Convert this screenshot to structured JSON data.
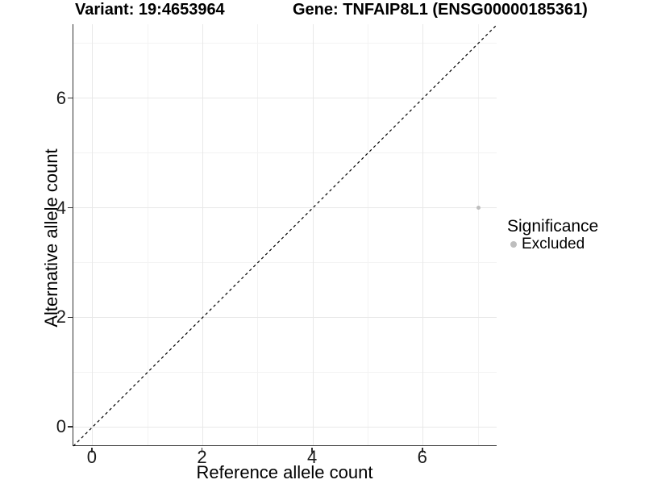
{
  "header": {
    "title_left": "Variant: 19:4653964",
    "title_right": "Gene: TNFAIP8L1 (ENSG00000185361)"
  },
  "chart_data": {
    "type": "scatter",
    "title": "Variant: 19:4653964   Gene: TNFAIP8L1 (ENSG00000185361)",
    "xlabel": "Reference allele count",
    "ylabel": "Alternative allele count",
    "xlim": [
      -0.35,
      7.35
    ],
    "ylim": [
      -0.35,
      7.35
    ],
    "x_ticks": [
      0,
      2,
      4,
      6
    ],
    "y_ticks": [
      0,
      2,
      4,
      6
    ],
    "x_minor_gridlines": [
      1,
      3,
      5,
      7
    ],
    "y_minor_gridlines": [
      1,
      3,
      5,
      7
    ],
    "grid": "major and minor gridlines on, light gray",
    "series": [
      {
        "name": "Excluded",
        "color": "#bebebe",
        "point_radius": 2.5,
        "points": [
          {
            "x": 7,
            "y": 4
          }
        ]
      }
    ],
    "reference_line": {
      "kind": "identity y=x",
      "style": "dashed",
      "color": "#000000",
      "from": [
        -0.35,
        -0.35
      ],
      "to": [
        7.35,
        7.35
      ]
    },
    "legend": {
      "title": "Significance",
      "position": "right",
      "entries": [
        {
          "label": "Excluded",
          "color": "#bebebe"
        }
      ]
    }
  },
  "colors": {
    "background": "#ffffff",
    "axis_line": "#333333",
    "tick_label": "#1a1a1a",
    "grid_major": "#e8e8e8",
    "grid_minor": "#f3f3f3",
    "point": "#bebebe"
  }
}
